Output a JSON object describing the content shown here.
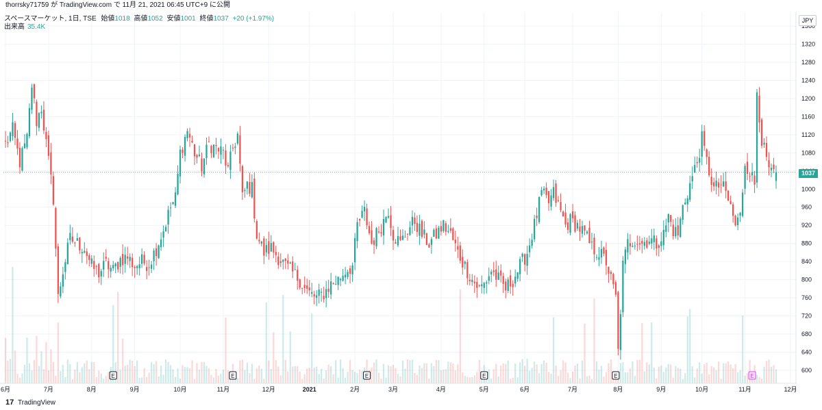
{
  "header": {
    "published_text": "thorrsky71759 が TradingView.com で 11月 21, 2021 06:45 UTC+9 に公開"
  },
  "legend": {
    "symbol": "スペースマーケット, 1日, TSE",
    "open_label": "始値",
    "open": "1018",
    "high_label": "高値",
    "high": "1052",
    "low_label": "安値",
    "low": "1001",
    "close_label": "終値",
    "close": "1037",
    "change": "+20 (+1.97%)",
    "volume_label": "出来高",
    "volume": "35.4K"
  },
  "currency": "JPY",
  "last_price_label": "1037",
  "footer": {
    "logo": "17",
    "brand": "TradingView"
  },
  "colors": {
    "up": "#26a69a",
    "down": "#ef5350",
    "grid": "#f0f3fa",
    "axis_text": "#131722"
  },
  "chart_data": {
    "type": "candlestick",
    "title": "スペースマーケット, 1日, TSE",
    "y_ticks": [
      600,
      640,
      680,
      720,
      760,
      800,
      840,
      880,
      920,
      960,
      1000,
      1040,
      1080,
      1120,
      1160,
      1200,
      1240,
      1280,
      1320,
      1360
    ],
    "ylim": [
      580,
      1375
    ],
    "last_price": 1037,
    "x_tick_labels": [
      "6月",
      "7月",
      "8月",
      "9月",
      "10月",
      "11月",
      "12月",
      "2021",
      "2月",
      "3月",
      "4月",
      "5月",
      "6月",
      "7月",
      "8月",
      "9月",
      "10月",
      "11月",
      "12月"
    ],
    "x_tick_index": [
      0,
      18,
      36,
      54,
      73,
      91,
      110,
      127,
      146,
      162,
      182,
      200,
      217,
      237,
      256,
      274,
      291,
      309,
      328
    ],
    "earnings_markers": [
      {
        "label": "E",
        "index": 45
      },
      {
        "label": "E",
        "index": 95
      },
      {
        "label": "E",
        "index": 151
      },
      {
        "label": "E",
        "index": 200
      },
      {
        "label": "E",
        "index": 255
      },
      {
        "label": "E",
        "index": 312,
        "highlight": true
      }
    ],
    "anchors": [
      [
        0,
        1100
      ],
      [
        3,
        1130
      ],
      [
        6,
        1060
      ],
      [
        9,
        1110
      ],
      [
        11,
        1230
      ],
      [
        13,
        1150
      ],
      [
        15,
        1180
      ],
      [
        17,
        1100
      ],
      [
        20,
        980
      ],
      [
        22,
        760
      ],
      [
        24,
        820
      ],
      [
        27,
        890
      ],
      [
        30,
        880
      ],
      [
        33,
        870
      ],
      [
        36,
        830
      ],
      [
        39,
        815
      ],
      [
        42,
        835
      ],
      [
        45,
        820
      ],
      [
        48,
        845
      ],
      [
        51,
        850
      ],
      [
        54,
        830
      ],
      [
        57,
        840
      ],
      [
        60,
        835
      ],
      [
        63,
        870
      ],
      [
        66,
        910
      ],
      [
        69,
        960
      ],
      [
        71,
        980
      ],
      [
        73,
        1080
      ],
      [
        76,
        1130
      ],
      [
        79,
        1080
      ],
      [
        82,
        1050
      ],
      [
        85,
        1100
      ],
      [
        88,
        1090
      ],
      [
        91,
        1080
      ],
      [
        93,
        1040
      ],
      [
        95,
        1090
      ],
      [
        97,
        1120
      ],
      [
        99,
        980
      ],
      [
        101,
        1010
      ],
      [
        103,
        1000
      ],
      [
        105,
        900
      ],
      [
        108,
        860
      ],
      [
        111,
        870
      ],
      [
        114,
        850
      ],
      [
        117,
        830
      ],
      [
        120,
        815
      ],
      [
        123,
        800
      ],
      [
        125,
        780
      ],
      [
        127,
        770
      ],
      [
        130,
        760
      ],
      [
        133,
        770
      ],
      [
        136,
        790
      ],
      [
        139,
        800
      ],
      [
        142,
        820
      ],
      [
        145,
        830
      ],
      [
        147,
        920
      ],
      [
        150,
        950
      ],
      [
        153,
        880
      ],
      [
        156,
        910
      ],
      [
        158,
        930
      ],
      [
        160,
        955
      ],
      [
        162,
        900
      ],
      [
        165,
        880
      ],
      [
        168,
        910
      ],
      [
        171,
        930
      ],
      [
        174,
        900
      ],
      [
        177,
        880
      ],
      [
        180,
        900
      ],
      [
        183,
        920
      ],
      [
        186,
        900
      ],
      [
        189,
        860
      ],
      [
        192,
        830
      ],
      [
        195,
        800
      ],
      [
        198,
        780
      ],
      [
        200,
        790
      ],
      [
        203,
        820
      ],
      [
        206,
        800
      ],
      [
        209,
        780
      ],
      [
        212,
        800
      ],
      [
        215,
        830
      ],
      [
        218,
        860
      ],
      [
        221,
        920
      ],
      [
        224,
        990
      ],
      [
        227,
        970
      ],
      [
        229,
        990
      ],
      [
        232,
        950
      ],
      [
        234,
        920
      ],
      [
        236,
        930
      ],
      [
        239,
        920
      ],
      [
        242,
        900
      ],
      [
        245,
        870
      ],
      [
        248,
        860
      ],
      [
        251,
        840
      ],
      [
        253,
        800
      ],
      [
        255,
        760
      ],
      [
        256,
        640
      ],
      [
        258,
        830
      ],
      [
        260,
        880
      ],
      [
        263,
        890
      ],
      [
        266,
        880
      ],
      [
        269,
        890
      ],
      [
        272,
        880
      ],
      [
        275,
        900
      ],
      [
        277,
        940
      ],
      [
        279,
        910
      ],
      [
        281,
        900
      ],
      [
        283,
        960
      ],
      [
        286,
        1010
      ],
      [
        289,
        1060
      ],
      [
        291,
        1110
      ],
      [
        293,
        1060
      ],
      [
        296,
        1000
      ],
      [
        299,
        1010
      ],
      [
        301,
        990
      ],
      [
        303,
        960
      ],
      [
        305,
        920
      ],
      [
        307,
        940
      ],
      [
        309,
        1060
      ],
      [
        311,
        1040
      ],
      [
        313,
        1010
      ],
      [
        314,
        1220
      ],
      [
        316,
        1110
      ],
      [
        318,
        1060
      ],
      [
        320,
        1030
      ],
      [
        322,
        1037
      ]
    ]
  }
}
